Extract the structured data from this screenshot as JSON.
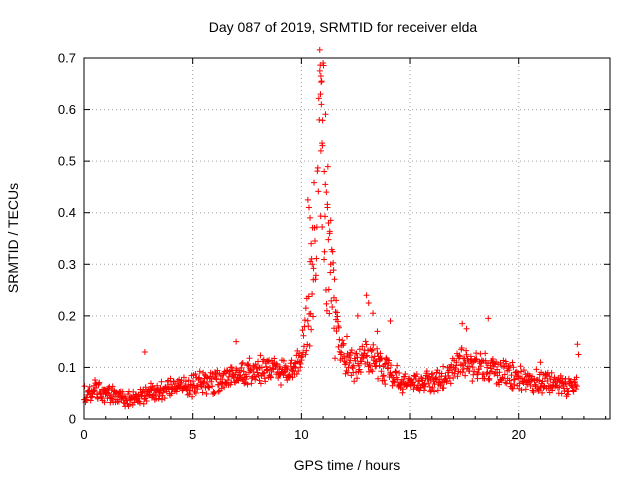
{
  "chart_data": {
    "type": "scatter",
    "title": "Day 087 of 2019, SRMTID for receiver elda",
    "xlabel": "GPS time / hours",
    "ylabel": "SRMTID / TECUs",
    "xlim": [
      0,
      24.2
    ],
    "ylim": [
      0,
      0.7
    ],
    "x_ticks": [
      0,
      5,
      10,
      15,
      20
    ],
    "x_tick_labels": [
      "0",
      "5",
      "10",
      "15",
      "20"
    ],
    "y_ticks": [
      0,
      0.1,
      0.2,
      0.3,
      0.4,
      0.5,
      0.6,
      0.7
    ],
    "y_tick_labels": [
      "0",
      "0.1",
      "0.2",
      "0.3",
      "0.4",
      "0.5",
      "0.6",
      "0.7"
    ],
    "grid": true,
    "marker": "plus",
    "series": [
      {
        "name": "SRMTID",
        "color": "#ff0000",
        "anchors": [
          [
            0.0,
            0.05
          ],
          [
            0.5,
            0.055
          ],
          [
            1.0,
            0.05
          ],
          [
            1.5,
            0.045
          ],
          [
            2.0,
            0.04
          ],
          [
            2.5,
            0.045
          ],
          [
            3.0,
            0.05
          ],
          [
            3.5,
            0.055
          ],
          [
            4.0,
            0.06
          ],
          [
            4.5,
            0.06
          ],
          [
            5.0,
            0.065
          ],
          [
            5.5,
            0.07
          ],
          [
            6.0,
            0.07
          ],
          [
            6.5,
            0.075
          ],
          [
            7.0,
            0.08
          ],
          [
            7.5,
            0.09
          ],
          [
            8.0,
            0.095
          ],
          [
            8.5,
            0.09
          ],
          [
            9.0,
            0.09
          ],
          [
            9.5,
            0.095
          ],
          [
            10.0,
            0.12
          ],
          [
            10.3,
            0.2
          ],
          [
            10.5,
            0.3
          ],
          [
            10.7,
            0.4
          ],
          [
            10.85,
            0.55
          ],
          [
            11.0,
            0.5
          ],
          [
            11.2,
            0.35
          ],
          [
            11.5,
            0.2
          ],
          [
            12.0,
            0.11
          ],
          [
            12.5,
            0.1
          ],
          [
            13.0,
            0.12
          ],
          [
            13.5,
            0.11
          ],
          [
            14.0,
            0.09
          ],
          [
            14.5,
            0.075
          ],
          [
            15.0,
            0.07
          ],
          [
            15.5,
            0.07
          ],
          [
            16.0,
            0.075
          ],
          [
            16.5,
            0.08
          ],
          [
            17.0,
            0.1
          ],
          [
            17.5,
            0.11
          ],
          [
            18.0,
            0.105
          ],
          [
            18.5,
            0.1
          ],
          [
            19.0,
            0.09
          ],
          [
            19.5,
            0.085
          ],
          [
            20.0,
            0.08
          ],
          [
            20.5,
            0.075
          ],
          [
            21.0,
            0.07
          ],
          [
            21.5,
            0.07
          ],
          [
            22.0,
            0.065
          ],
          [
            22.7,
            0.07
          ]
        ],
        "highlights": [
          [
            10.85,
            0.675
          ],
          [
            10.9,
            0.665
          ],
          [
            10.88,
            0.63
          ],
          [
            10.92,
            0.61
          ],
          [
            10.95,
            0.535
          ],
          [
            10.97,
            0.53
          ],
          [
            10.9,
            0.52
          ],
          [
            11.05,
            0.48
          ],
          [
            11.1,
            0.455
          ],
          [
            11.15,
            0.44
          ],
          [
            11.2,
            0.41
          ],
          [
            11.25,
            0.38
          ],
          [
            11.3,
            0.36
          ],
          [
            11.35,
            0.3
          ],
          [
            10.3,
            0.425
          ],
          [
            10.35,
            0.41
          ],
          [
            10.4,
            0.39
          ],
          [
            10.45,
            0.34
          ],
          [
            10.5,
            0.3
          ],
          [
            10.55,
            0.27
          ],
          [
            11.5,
            0.235
          ],
          [
            11.6,
            0.23
          ],
          [
            11.7,
            0.18
          ],
          [
            12.1,
            0.16
          ],
          [
            12.6,
            0.2
          ],
          [
            13.0,
            0.24
          ],
          [
            13.1,
            0.225
          ],
          [
            13.3,
            0.205
          ],
          [
            13.5,
            0.17
          ],
          [
            14.1,
            0.19
          ],
          [
            17.4,
            0.185
          ],
          [
            17.6,
            0.175
          ],
          [
            18.6,
            0.195
          ],
          [
            2.8,
            0.13
          ],
          [
            7.0,
            0.15
          ],
          [
            22.7,
            0.145
          ],
          [
            22.75,
            0.125
          ],
          [
            21.0,
            0.11
          ]
        ]
      }
    ]
  }
}
